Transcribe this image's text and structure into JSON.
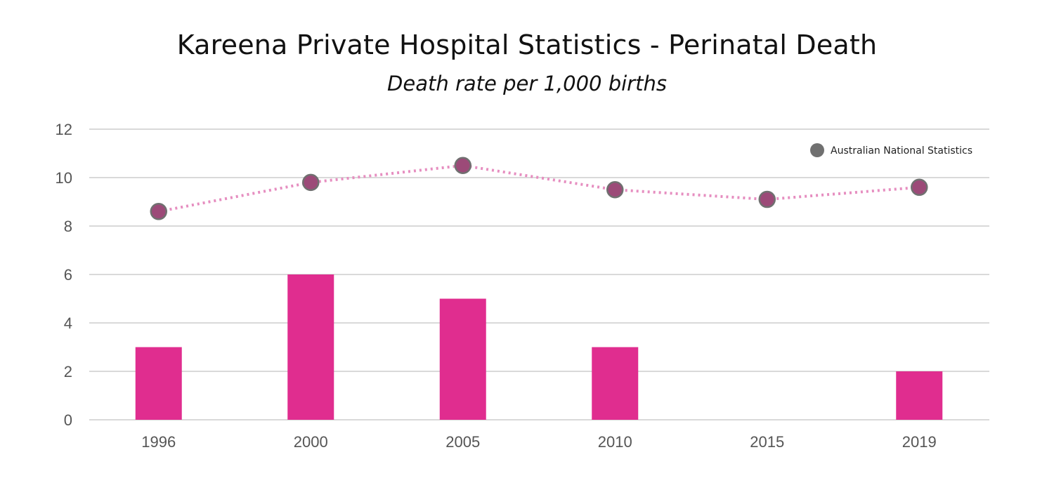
{
  "chart_data": {
    "type": "bar+line",
    "title": "Kareena Private Hospital Statistics - Perinatal Death",
    "subtitle": "Death rate per 1,000 births",
    "xlabel": "",
    "ylabel": "",
    "categories": [
      "1996",
      "2000",
      "2005",
      "2010",
      "2015",
      "2019"
    ],
    "ylim": [
      0,
      12
    ],
    "yticks": [
      0,
      2,
      4,
      6,
      8,
      10,
      12
    ],
    "grid": true,
    "legend_position": "top-right",
    "series": [
      {
        "type": "bar",
        "values": [
          3,
          6,
          5,
          3,
          0,
          2
        ],
        "color": "#e02d8f"
      },
      {
        "type": "line",
        "name": "Australian National Statistics",
        "values": [
          8.6,
          9.8,
          10.5,
          9.5,
          9.1,
          9.6
        ],
        "line_color": "#e68ec0",
        "line_style": "dotted",
        "marker_fill": "#9c4a78",
        "marker_stroke": "#707070",
        "legend_color": "#707070"
      }
    ]
  }
}
